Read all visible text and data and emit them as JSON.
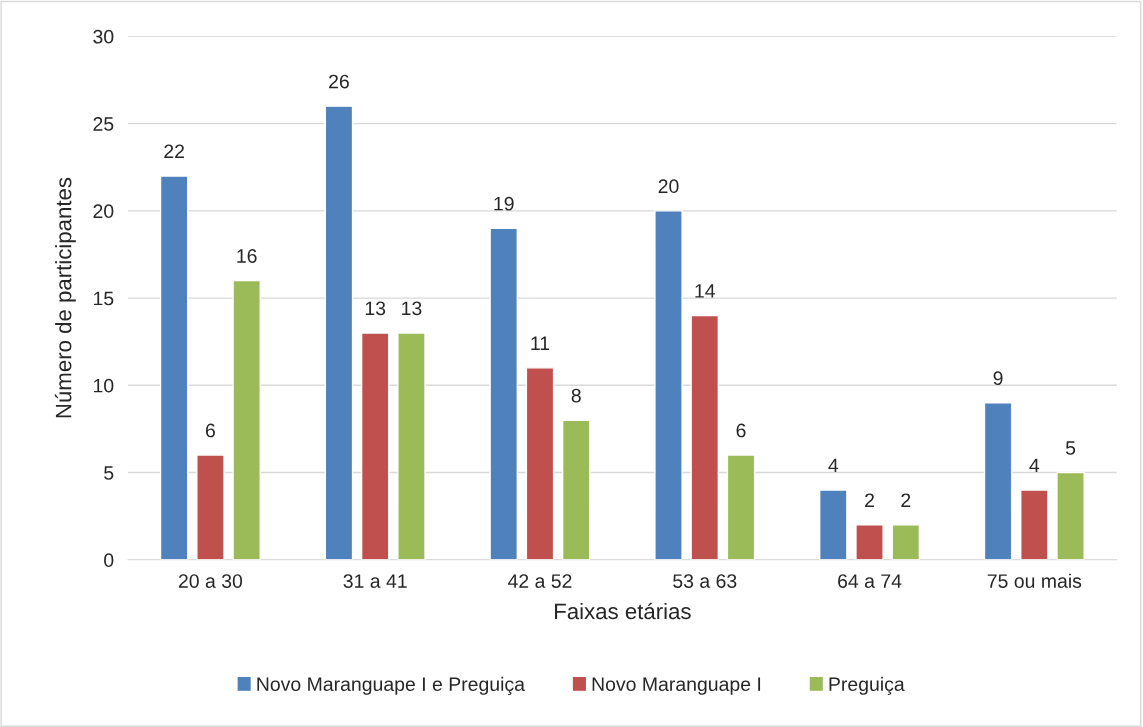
{
  "chart_data": {
    "type": "bar",
    "categories": [
      "20 a 30",
      "31 a 41",
      "42 a 52",
      "53 a 63",
      "64 a 74",
      "75 ou mais"
    ],
    "series": [
      {
        "name": "Novo Maranguape I e Preguiça",
        "color": "#4f81bd",
        "values": [
          22,
          26,
          19,
          20,
          4,
          9
        ]
      },
      {
        "name": "Novo Maranguape I",
        "color": "#c0504d",
        "values": [
          6,
          13,
          11,
          14,
          2,
          4
        ]
      },
      {
        "name": "Preguiça",
        "color": "#9bbb59",
        "values": [
          16,
          13,
          8,
          6,
          2,
          5
        ]
      }
    ],
    "xlabel": "Faixas etárias",
    "ylabel": "Número de participantes",
    "ylim": [
      0,
      30
    ],
    "yticks": [
      0,
      5,
      10,
      15,
      20,
      25,
      30
    ],
    "grid": "y",
    "legend": "bottom",
    "data_labels": true
  }
}
